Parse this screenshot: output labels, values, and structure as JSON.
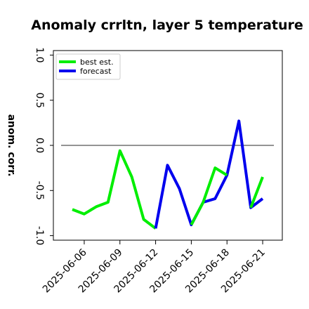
{
  "chart_data": {
    "type": "line",
    "title": "Anomaly crrltn, layer 5 temperature",
    "ylabel": "anom. corr.",
    "xlabel": "",
    "ylim": [
      -1.05,
      1.05
    ],
    "yticks": [
      -1.0,
      -0.5,
      0.0,
      0.5,
      1.0
    ],
    "ytick_labels": [
      "-1.0",
      "-0.5",
      "0.0",
      "0.5",
      "1.0"
    ],
    "x": [
      "2025-06-05",
      "2025-06-06",
      "2025-06-07",
      "2025-06-08",
      "2025-06-09",
      "2025-06-10",
      "2025-06-11",
      "2025-06-12",
      "2025-06-13",
      "2025-06-14",
      "2025-06-15",
      "2025-06-16",
      "2025-06-17",
      "2025-06-18",
      "2025-06-19",
      "2025-06-20",
      "2025-06-21"
    ],
    "xtick_labels": [
      {
        "date": "2025-06-06",
        "label": "2025-06-06",
        "color": "#000000"
      },
      {
        "date": "2025-06-09",
        "label": "2025-06-09",
        "color": "#000000"
      },
      {
        "date": "2025-06-12",
        "label": "2025-06-12",
        "color": "#008000"
      },
      {
        "date": "2025-06-15",
        "label": "2025-06-15",
        "color": "#000000"
      },
      {
        "date": "2025-06-18",
        "label": "2025-06-18",
        "color": "#000000"
      },
      {
        "date": "2025-06-21",
        "label": "2025-06-21",
        "color": "#000000"
      }
    ],
    "zero_line": 0.0,
    "grid": false,
    "legend_position": "top-left",
    "series": [
      {
        "name": "best est.",
        "color": "#00ee00",
        "x": [
          "2025-06-05",
          "2025-06-06",
          "2025-06-07",
          "2025-06-08",
          "2025-06-09",
          "2025-06-10",
          "2025-06-11",
          "2025-06-12"
        ],
        "values": [
          -0.71,
          -0.76,
          -0.68,
          -0.63,
          -0.06,
          -0.35,
          -0.82,
          -0.92
        ]
      },
      {
        "name": "forecast",
        "color": "#0000ee",
        "x": [
          "2025-06-12",
          "2025-06-13",
          "2025-06-14",
          "2025-06-15",
          "2025-06-16",
          "2025-06-17",
          "2025-06-18",
          "2025-06-19",
          "2025-06-20",
          "2025-06-21"
        ],
        "values": [
          -0.92,
          -0.22,
          -0.48,
          -0.88,
          -0.63,
          -0.59,
          -0.33,
          0.27,
          -0.69,
          -0.59
        ]
      },
      {
        "name": "",
        "color": "#00ee00",
        "x": [
          "2025-06-15",
          "2025-06-16",
          "2025-06-17",
          "2025-06-18"
        ],
        "values": [
          -0.88,
          -0.63,
          -0.25,
          -0.33
        ]
      },
      {
        "name": "",
        "color": "#00ee00",
        "x": [
          "2025-06-20",
          "2025-06-21"
        ],
        "values": [
          -0.69,
          -0.35
        ]
      }
    ]
  }
}
